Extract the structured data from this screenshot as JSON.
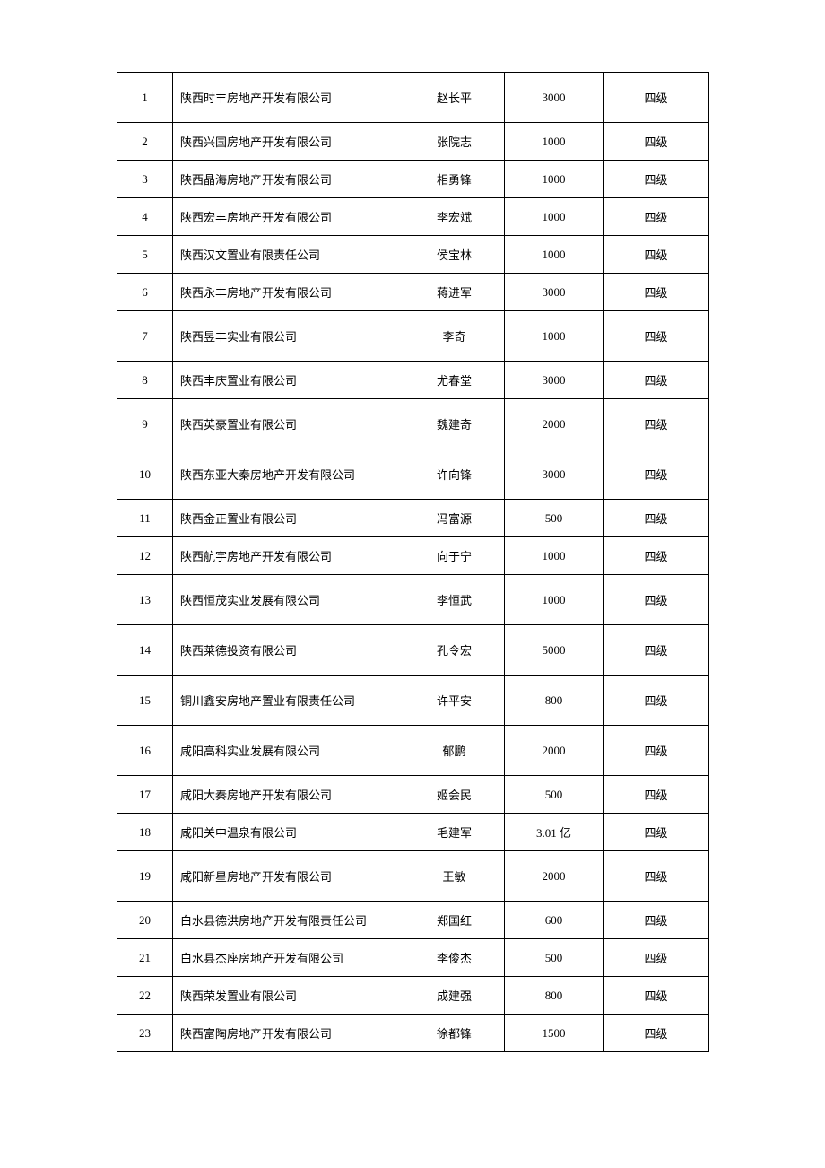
{
  "table": {
    "columns": {
      "num_width": 62,
      "company_width": 258,
      "name_width": 112,
      "amount_width": 110,
      "level_width": 118
    },
    "font_size": 13,
    "border_color": "#000000",
    "text_color": "#000000",
    "background_color": "#ffffff",
    "row_height_normal": 42,
    "row_height_tall": 56,
    "rows": [
      {
        "num": "1",
        "company": "陕西时丰房地产开发有限公司",
        "name": "赵长平",
        "amount": "3000",
        "level": "四级",
        "tall": true
      },
      {
        "num": "2",
        "company": "陕西兴国房地产开发有限公司",
        "name": "张院志",
        "amount": "1000",
        "level": "四级",
        "tall": false
      },
      {
        "num": "3",
        "company": "陕西晶海房地产开发有限公司",
        "name": "相勇锋",
        "amount": "1000",
        "level": "四级",
        "tall": false
      },
      {
        "num": "4",
        "company": "陕西宏丰房地产开发有限公司",
        "name": "李宏斌",
        "amount": "1000",
        "level": "四级",
        "tall": false
      },
      {
        "num": "5",
        "company": "陕西汉文置业有限责任公司",
        "name": "侯宝林",
        "amount": "1000",
        "level": "四级",
        "tall": false
      },
      {
        "num": "6",
        "company": "陕西永丰房地产开发有限公司",
        "name": "蒋进军",
        "amount": "3000",
        "level": "四级",
        "tall": false
      },
      {
        "num": "7",
        "company": "陕西昱丰实业有限公司",
        "name": "李奇",
        "amount": "1000",
        "level": "四级",
        "tall": true
      },
      {
        "num": "8",
        "company": "陕西丰庆置业有限公司",
        "name": "尤春堂",
        "amount": "3000",
        "level": "四级",
        "tall": false
      },
      {
        "num": "9",
        "company": "陕西英豪置业有限公司",
        "name": "魏建奇",
        "amount": "2000",
        "level": "四级",
        "tall": true
      },
      {
        "num": "10",
        "company": "陕西东亚大秦房地产开发有限公司",
        "name": "许向锋",
        "amount": "3000",
        "level": "四级",
        "tall": true
      },
      {
        "num": "11",
        "company": "陕西金正置业有限公司",
        "name": "冯富源",
        "amount": "500",
        "level": "四级",
        "tall": false
      },
      {
        "num": "12",
        "company": "陕西航宇房地产开发有限公司",
        "name": "向于宁",
        "amount": "1000",
        "level": "四级",
        "tall": false
      },
      {
        "num": "13",
        "company": "陕西恒茂实业发展有限公司",
        "name": "李恒武",
        "amount": "1000",
        "level": "四级",
        "tall": true
      },
      {
        "num": "14",
        "company": "陕西莱德投资有限公司",
        "name": "孔令宏",
        "amount": "5000",
        "level": "四级",
        "tall": true
      },
      {
        "num": "15",
        "company": "铜川鑫安房地产置业有限责任公司",
        "name": "许平安",
        "amount": "800",
        "level": "四级",
        "tall": true
      },
      {
        "num": "16",
        "company": "咸阳高科实业发展有限公司",
        "name": "郁鹏",
        "amount": "2000",
        "level": "四级",
        "tall": true
      },
      {
        "num": "17",
        "company": "咸阳大秦房地产开发有限公司",
        "name": "姬会民",
        "amount": "500",
        "level": "四级",
        "tall": false
      },
      {
        "num": "18",
        "company": "咸阳关中温泉有限公司",
        "name": "毛建军",
        "amount": "3.01 亿",
        "level": "四级",
        "tall": false
      },
      {
        "num": "19",
        "company": "咸阳新星房地产开发有限公司",
        "name": "王敏",
        "amount": "2000",
        "level": "四级",
        "tall": true
      },
      {
        "num": "20",
        "company": "白水县德洪房地产开发有限责任公司",
        "name": "郑国红",
        "amount": "600",
        "level": "四级",
        "tall": false
      },
      {
        "num": "21",
        "company": "白水县杰座房地产开发有限公司",
        "name": "李俊杰",
        "amount": "500",
        "level": "四级",
        "tall": false
      },
      {
        "num": "22",
        "company": "陕西荣发置业有限公司",
        "name": "成建强",
        "amount": "800",
        "level": "四级",
        "tall": false
      },
      {
        "num": "23",
        "company": "陕西富陶房地产开发有限公司",
        "name": "徐都锋",
        "amount": "1500",
        "level": "四级",
        "tall": false
      }
    ]
  }
}
